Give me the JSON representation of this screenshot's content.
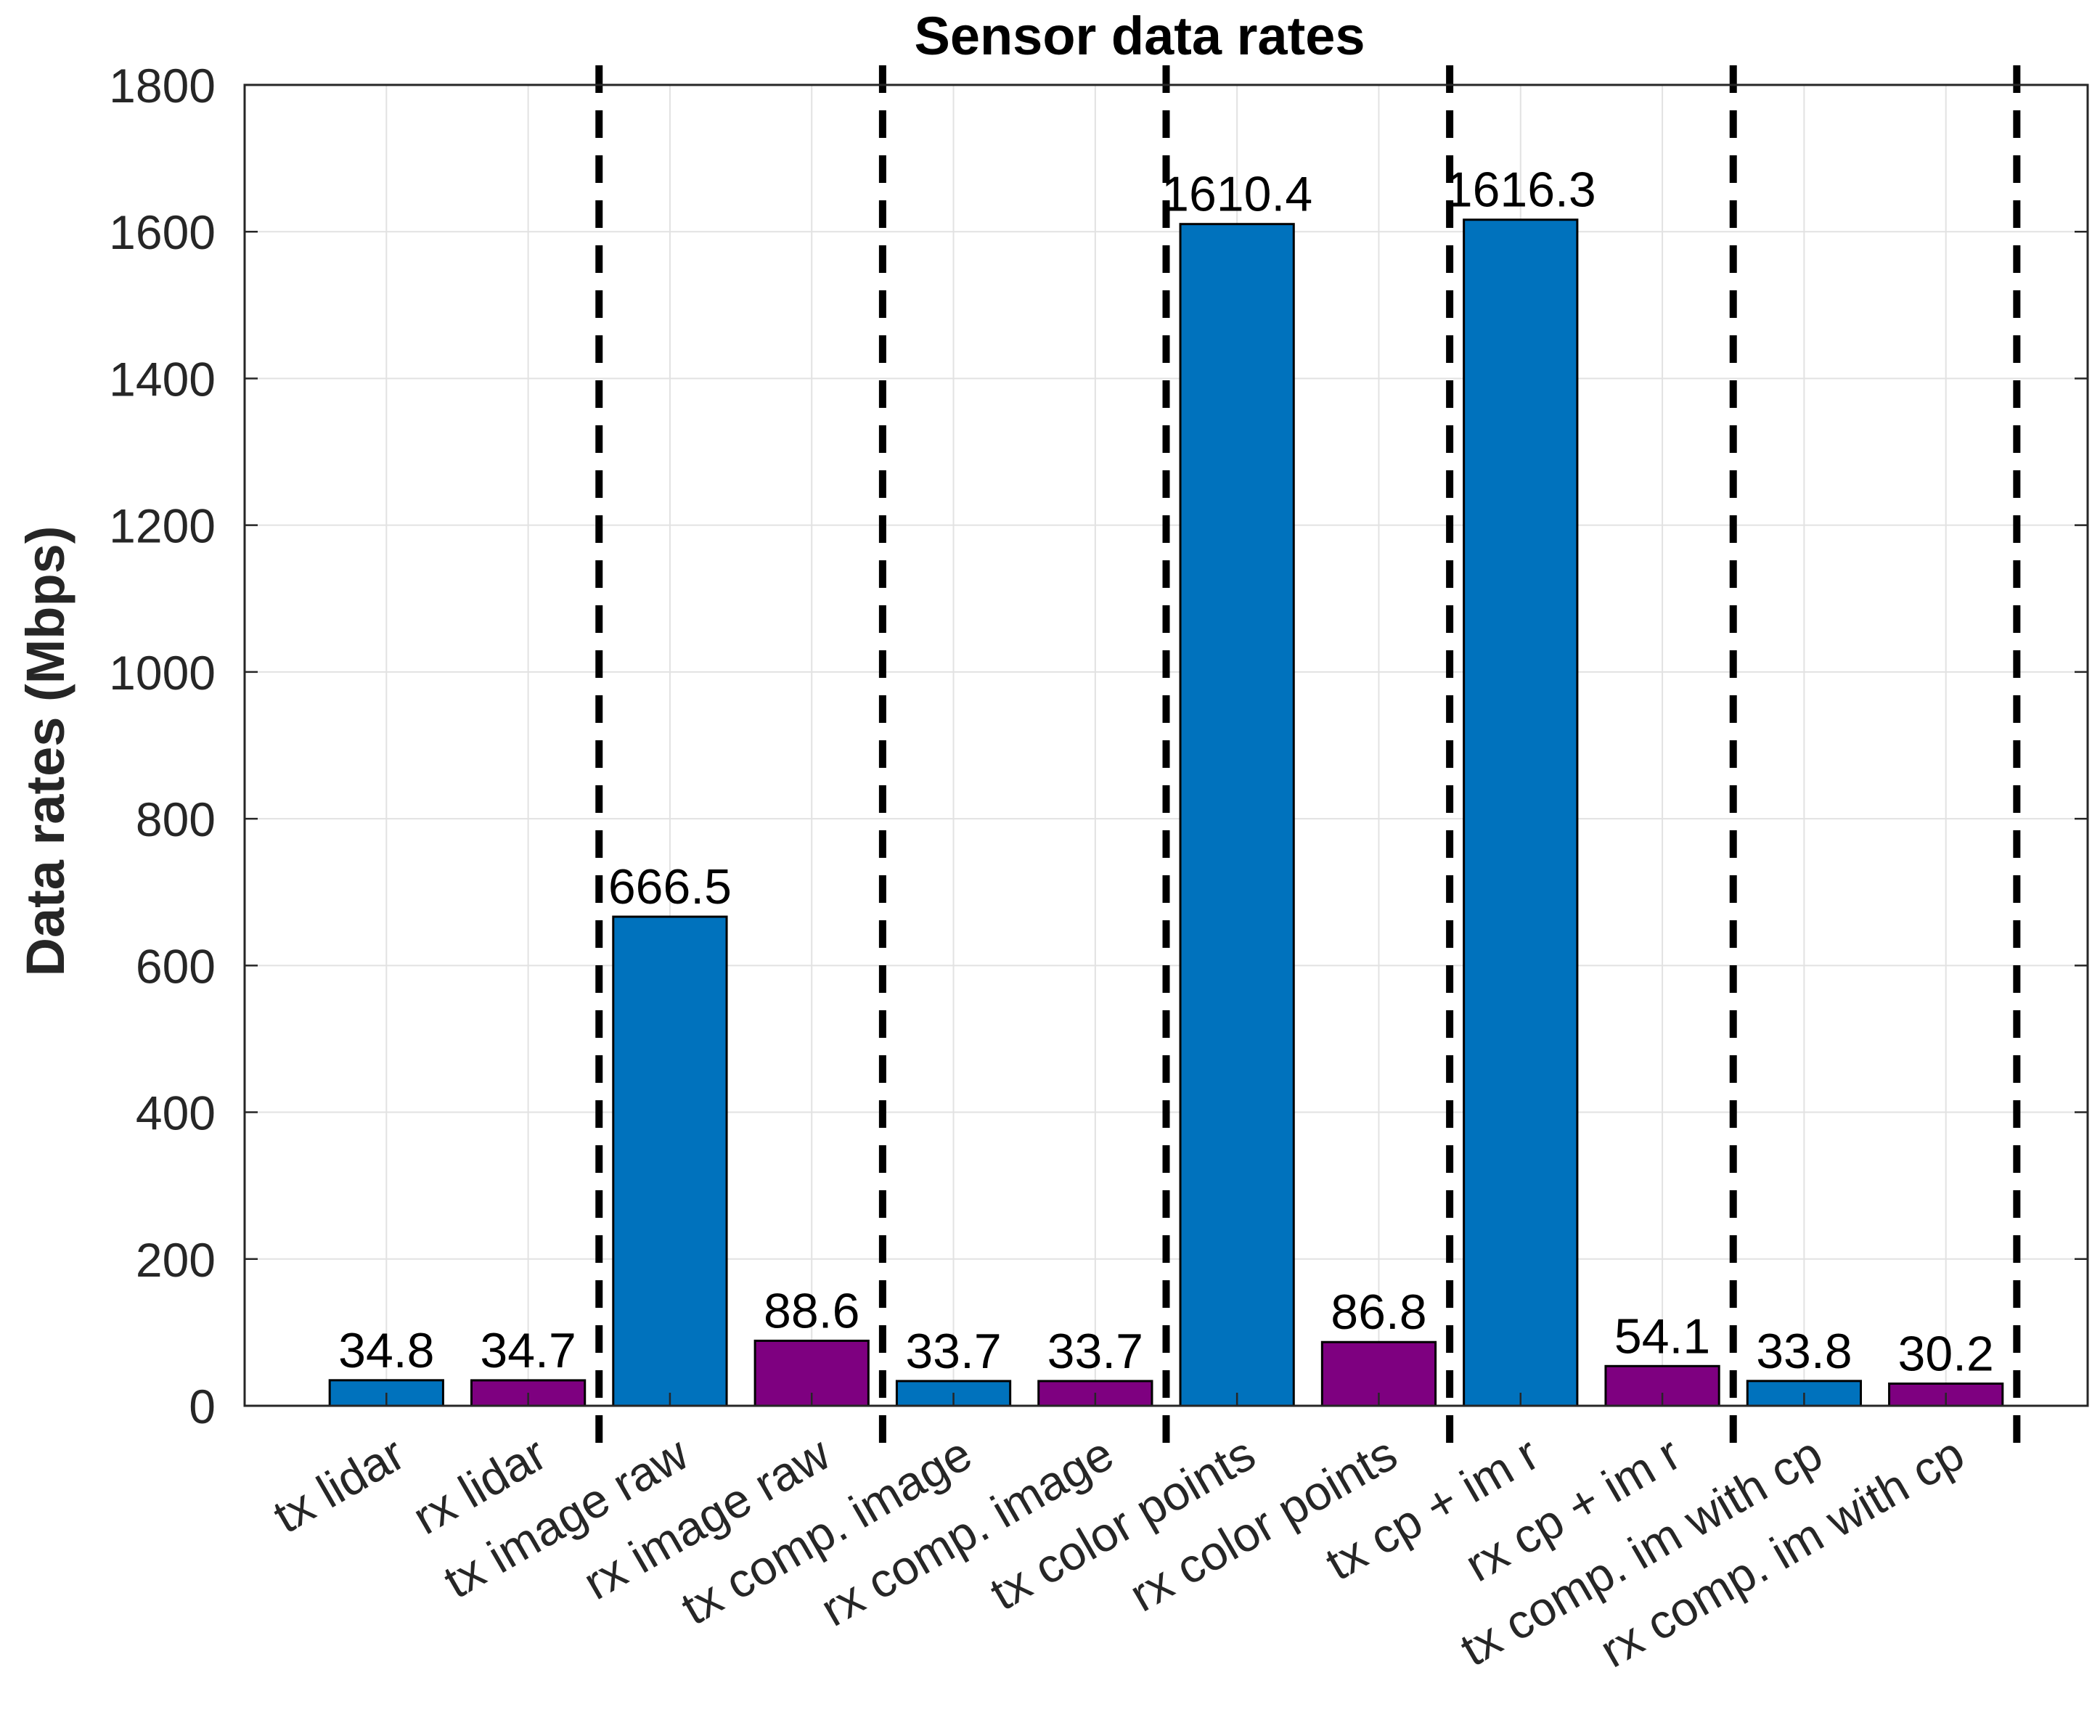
{
  "chart_data": {
    "type": "bar",
    "title": "Sensor data rates",
    "xlabel": "",
    "ylabel": "Data rates (Mbps)",
    "ylim": [
      0,
      1800
    ],
    "yticks": [
      0,
      200,
      400,
      600,
      800,
      1000,
      1200,
      1400,
      1600,
      1800
    ],
    "grid": true,
    "categories": [
      "tx lidar",
      "rx lidar",
      "tx image raw",
      "rx image raw",
      "tx comp. image",
      "rx comp. image",
      "tx color points",
      "rx color points",
      "tx cp + im r",
      "rx cp + im r",
      "tx comp. im with cp",
      "rx comp. im with cp"
    ],
    "values": [
      34.8,
      34.7,
      666.5,
      88.6,
      33.7,
      33.7,
      1610.4,
      86.8,
      1616.3,
      54.1,
      33.8,
      30.2
    ],
    "value_labels": [
      "34.8",
      "34.7",
      "666.5",
      "88.6",
      "33.7",
      "33.7",
      "1610.4",
      "86.8",
      "1616.3",
      "54.1",
      "33.8",
      "30.2"
    ],
    "bar_colors": [
      "#0072BD",
      "#7E0080",
      "#0072BD",
      "#7E0080",
      "#0072BD",
      "#7E0080",
      "#0072BD",
      "#7E0080",
      "#0072BD",
      "#7E0080",
      "#0072BD",
      "#7E0080"
    ],
    "group_separators_after_category_index": [
      1,
      3,
      5,
      7,
      9,
      11
    ]
  }
}
